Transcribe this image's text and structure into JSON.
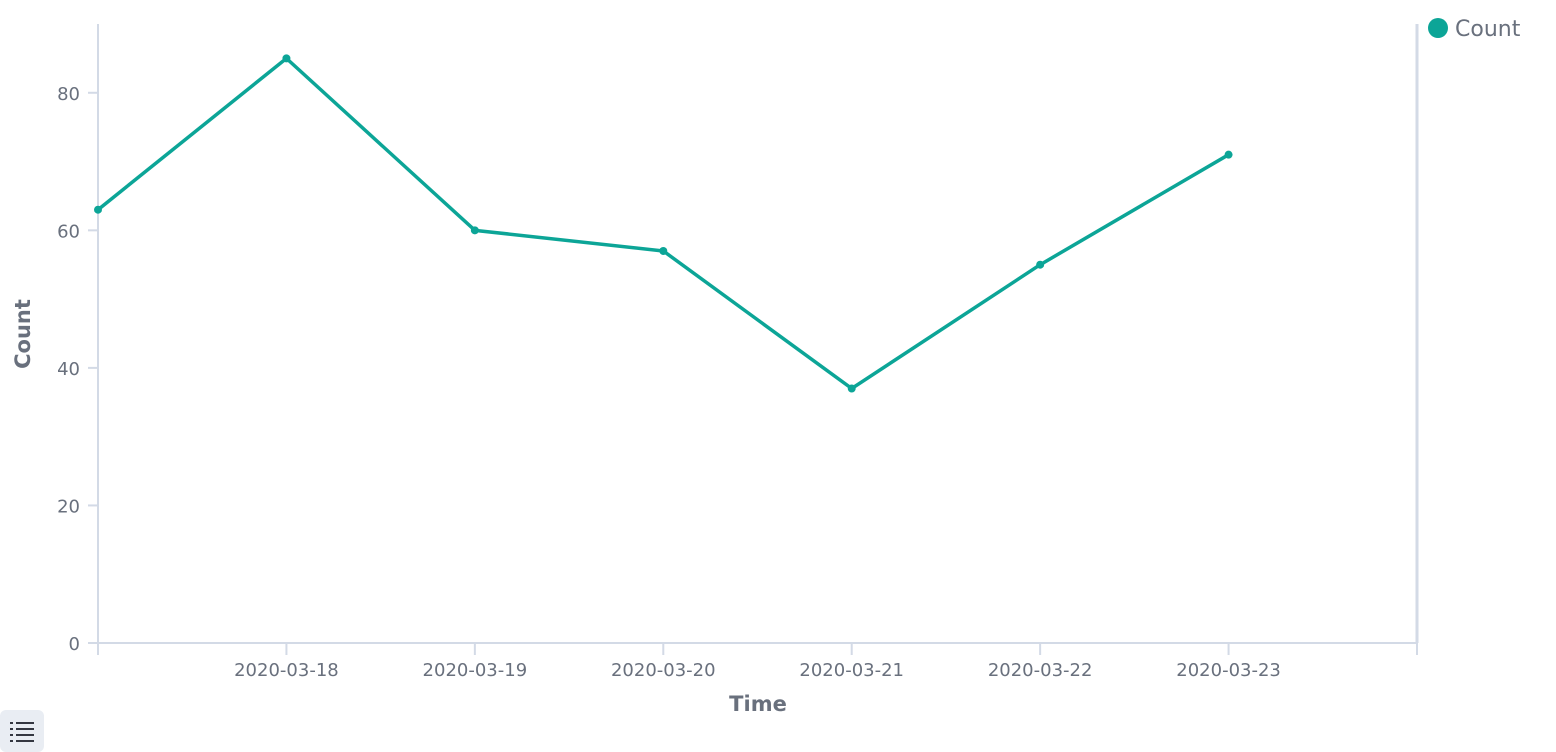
{
  "chart_data": {
    "type": "line",
    "xlabel": "Time",
    "ylabel": "Count",
    "x": [
      "2020-03-17",
      "2020-03-18",
      "2020-03-19",
      "2020-03-20",
      "2020-03-21",
      "2020-03-22",
      "2020-03-23"
    ],
    "x_tick_labels": [
      "2020-03-18",
      "2020-03-19",
      "2020-03-20",
      "2020-03-21",
      "2020-03-22",
      "2020-03-23"
    ],
    "y_ticks": [
      0,
      20,
      40,
      60,
      80
    ],
    "series": [
      {
        "name": "Count",
        "color": "#0ca597",
        "values": [
          63,
          85,
          60,
          57,
          37,
          55,
          71
        ]
      }
    ],
    "ylim": [
      0,
      90
    ],
    "xlim": [
      "2020-03-17",
      "2020-03-24"
    ],
    "grid": false,
    "legend": "top-right"
  },
  "legend_toggle": {
    "icon": "list-icon"
  }
}
